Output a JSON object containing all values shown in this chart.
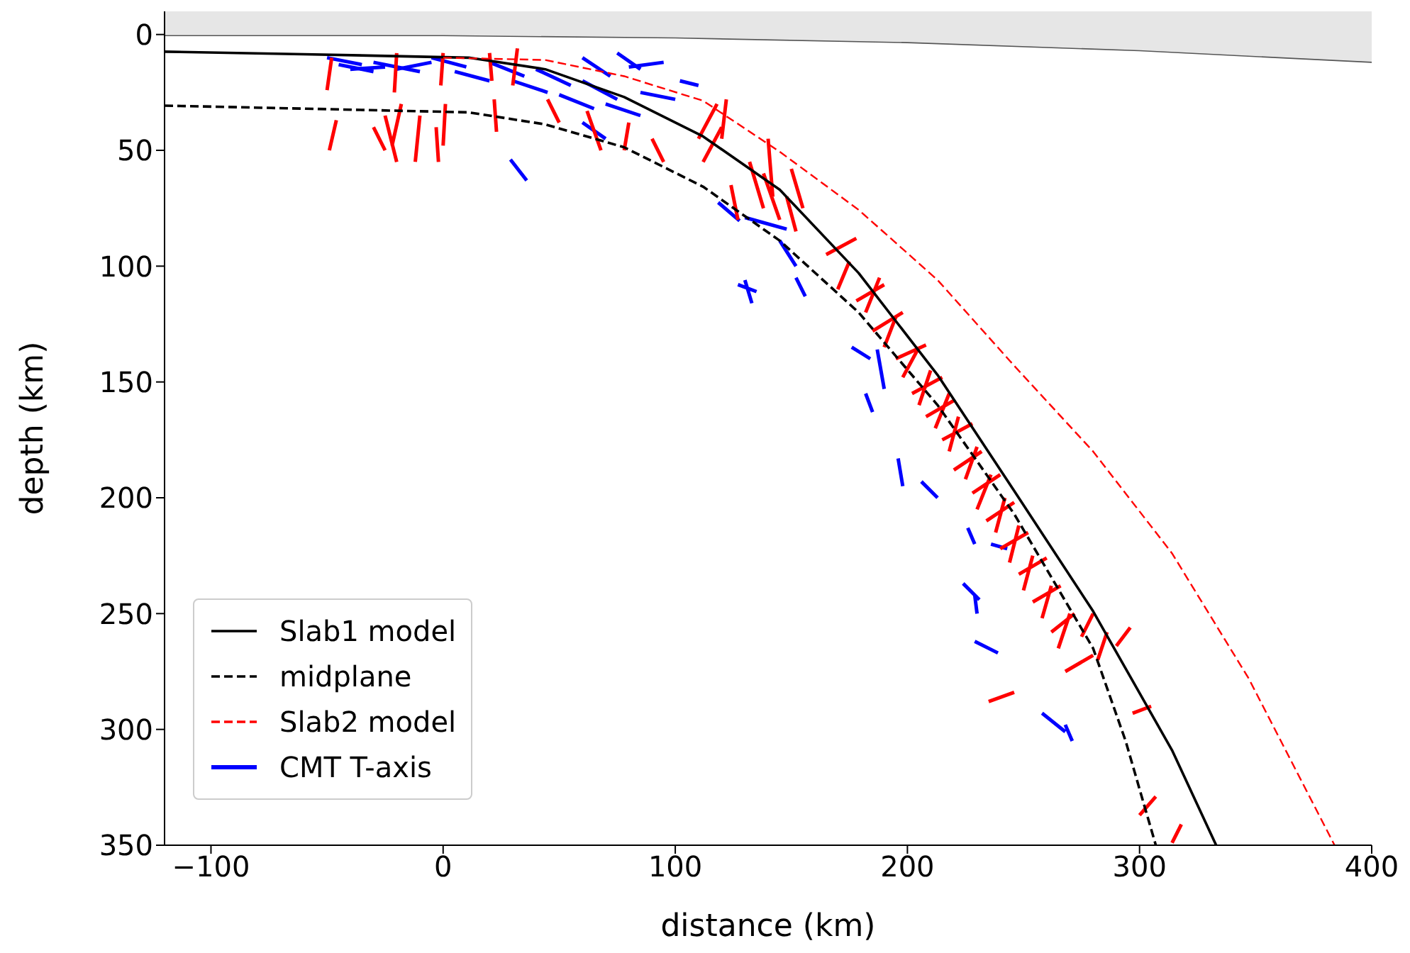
{
  "chart_data": {
    "type": "line",
    "xlabel": "distance (km)",
    "ylabel": "depth (km)",
    "xlim": [
      -120,
      400
    ],
    "ylim": [
      350,
      -10
    ],
    "xticks": [
      {
        "value": -100,
        "label": "−100"
      },
      0,
      100,
      200,
      300,
      400
    ],
    "yticks": [
      0,
      50,
      100,
      150,
      200,
      250,
      300,
      350
    ],
    "grid": false,
    "legend": "bottom left",
    "series": [
      {
        "name": "Slab1 model",
        "color": "#000000",
        "line_style": "solid",
        "x": [
          -120,
          -60,
          11,
          44,
          78,
          112,
          145,
          179,
          213,
          246,
          280,
          314,
          333
        ],
        "values": [
          7.4,
          8.5,
          10,
          15,
          27,
          44,
          67,
          103,
          147,
          197,
          249,
          309,
          350
        ]
      },
      {
        "name": "midplane",
        "color": "#000000",
        "line_style": "dashed",
        "x": [
          -120,
          -60,
          11,
          44,
          78,
          112,
          145,
          179,
          213,
          246,
          280,
          294,
          307
        ],
        "values": [
          30.7,
          32,
          33.6,
          38.8,
          48.7,
          65.7,
          89,
          120,
          160,
          207,
          265,
          305,
          350
        ]
      },
      {
        "name": "Slab2 model",
        "color": "#ff0000",
        "line_style": "dashed",
        "x": [
          0,
          44,
          78,
          112,
          145,
          179,
          213,
          246,
          280,
          314,
          347,
          384
        ],
        "values": [
          10,
          11,
          18,
          28.6,
          50.6,
          75.7,
          106,
          143,
          180,
          224,
          278,
          350
        ]
      },
      {
        "name": "CMT T-axis",
        "color": "#0000ff",
        "line_style": "solid",
        "x": [
          -50,
          -35,
          null,
          -45,
          -30,
          null,
          -40,
          -25,
          null,
          -30,
          -10,
          null,
          -20,
          -5,
          null,
          -5,
          10,
          null,
          5,
          20,
          null,
          20,
          35,
          null,
          30,
          45,
          null,
          40,
          55,
          null,
          50,
          65,
          null,
          60,
          75,
          null,
          70,
          85,
          null,
          60,
          72,
          null,
          75,
          85,
          null,
          80,
          95,
          null,
          102,
          110,
          null,
          85,
          100,
          null,
          60,
          70,
          null,
          29,
          36,
          null,
          118.5,
          127.7,
          null,
          130,
          148,
          null,
          145,
          152,
          null,
          127,
          135,
          null,
          130,
          133,
          null,
          152,
          156,
          null,
          176,
          184,
          null,
          187,
          190,
          null,
          182,
          185,
          null,
          196,
          198,
          null,
          206,
          213,
          null,
          226,
          229,
          null,
          236,
          243,
          null,
          224,
          231,
          null,
          229,
          230,
          null,
          229,
          239,
          null,
          258,
          268,
          null,
          268,
          271
        ],
        "values": [
          10,
          13,
          null,
          13,
          16,
          null,
          15,
          14,
          null,
          12,
          16,
          null,
          15,
          12,
          null,
          10,
          14,
          null,
          16,
          20,
          null,
          12,
          18,
          null,
          20,
          25,
          null,
          15,
          22,
          null,
          26,
          32,
          null,
          20,
          28,
          null,
          30,
          35,
          null,
          10,
          18,
          null,
          8,
          15,
          null,
          14,
          12,
          null,
          20,
          22,
          null,
          25,
          28,
          null,
          38,
          45,
          null,
          54,
          63,
          null,
          72.5,
          80.4,
          null,
          79,
          84,
          null,
          89,
          100,
          null,
          108,
          111,
          null,
          106,
          116,
          null,
          105,
          113,
          null,
          135,
          140,
          null,
          136,
          153,
          null,
          155,
          163,
          null,
          183,
          195,
          null,
          193,
          200,
          null,
          213,
          220,
          null,
          220,
          222,
          null,
          237,
          244,
          null,
          242,
          250,
          null,
          262,
          267,
          null,
          293,
          301,
          null,
          298,
          305
        ]
      },
      {
        "color": "#ff0000",
        "line_style": "solid",
        "x": [
          -48,
          -50,
          null,
          -46,
          -49,
          null,
          -20,
          -21,
          null,
          -18,
          -22,
          null,
          -30,
          -25,
          null,
          -25,
          -20,
          null,
          -10,
          -12,
          null,
          0,
          -1,
          null,
          1,
          0,
          null,
          -3,
          -2,
          null,
          20,
          21,
          null,
          22,
          23,
          null,
          32,
          30,
          null,
          45,
          50,
          null,
          62,
          68,
          null,
          90,
          95,
          null,
          80,
          78,
          null,
          110,
          118,
          null,
          112,
          120,
          null,
          122,
          120,
          null,
          132,
          138,
          null,
          140,
          142,
          null,
          138,
          145,
          null,
          124,
          127,
          null,
          148,
          152,
          null,
          150,
          155,
          null,
          165,
          178,
          null,
          170,
          175,
          null,
          178,
          190,
          null,
          182,
          188,
          null,
          185,
          198,
          null,
          190,
          195,
          null,
          195,
          208,
          null,
          198,
          205,
          null,
          202,
          215,
          null,
          205,
          210,
          null,
          208,
          220,
          null,
          212,
          218,
          null,
          215,
          228,
          null,
          218,
          222,
          null,
          220,
          232,
          null,
          225,
          230,
          null,
          228,
          240,
          null,
          230,
          236,
          null,
          234,
          246,
          null,
          238,
          242,
          null,
          240,
          252,
          null,
          244,
          248,
          null,
          248,
          260,
          null,
          250,
          254,
          null,
          254,
          266,
          null,
          258,
          262,
          null,
          262,
          272,
          null,
          265,
          270,
          null,
          268,
          280,
          null,
          275,
          280,
          null,
          290,
          296,
          null,
          282,
          286,
          null,
          235,
          246,
          null,
          297,
          305,
          null,
          300,
          307,
          null,
          314,
          318
        ],
        "values": [
          10,
          24,
          null,
          37,
          50,
          null,
          8,
          25,
          null,
          30,
          48,
          null,
          40,
          50,
          null,
          35,
          55,
          null,
          35,
          55,
          null,
          8,
          22,
          null,
          30,
          48,
          null,
          40,
          55,
          null,
          8,
          20,
          null,
          28,
          42,
          null,
          6,
          22,
          null,
          28,
          38,
          null,
          33,
          50,
          null,
          45,
          55,
          null,
          38,
          50,
          null,
          45,
          30,
          null,
          55,
          40,
          null,
          28,
          45,
          null,
          55,
          75,
          null,
          45,
          70,
          null,
          60,
          80,
          null,
          65,
          80,
          null,
          70,
          85,
          null,
          58,
          75,
          null,
          95,
          88,
          null,
          110,
          98,
          null,
          115,
          108,
          null,
          120,
          105,
          null,
          128,
          120,
          null,
          135,
          122,
          null,
          140,
          134,
          null,
          148,
          135,
          null,
          155,
          148,
          null,
          160,
          145,
          null,
          165,
          158,
          null,
          170,
          155,
          null,
          175,
          168,
          null,
          180,
          165,
          null,
          188,
          180,
          null,
          192,
          178,
          null,
          198,
          190,
          null,
          205,
          190,
          null,
          210,
          202,
          null,
          215,
          200,
          null,
          222,
          215,
          null,
          228,
          212,
          null,
          233,
          226,
          null,
          240,
          225,
          null,
          245,
          238,
          null,
          252,
          238,
          null,
          258,
          250,
          null,
          265,
          250,
          null,
          275,
          268,
          null,
          260,
          250,
          null,
          264,
          256,
          null,
          270,
          258,
          null,
          288,
          284,
          null,
          293,
          290,
          null,
          337,
          329,
          null,
          349,
          341
        ]
      },
      {
        "color": "#555555",
        "line_style": "solid",
        "x": [
          -120,
          0,
          100,
          200,
          300,
          400
        ],
        "values": [
          0.5,
          0.5,
          1.5,
          3.5,
          7,
          12
        ],
        "lower": [
          -10,
          -10,
          -10,
          -10,
          -10,
          -10
        ],
        "upper": [
          0.5,
          0.5,
          1.5,
          3.5,
          7,
          12
        ]
      }
    ]
  }
}
